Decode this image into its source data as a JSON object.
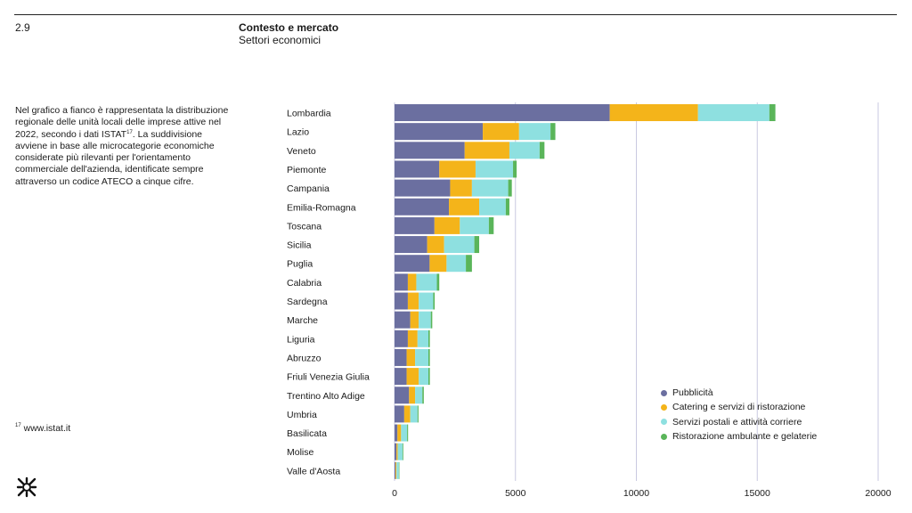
{
  "header": {
    "page_number": "2.9",
    "section_title": "Contesto e mercato",
    "section_subtitle": "Settori economici"
  },
  "description": {
    "text_before": "Nel grafico a fianco è rappresentata la distribuzione regionale delle unità locali delle imprese attive nel 2022, secondo i dati ISTAT",
    "footnote_ref": "17",
    "text_after": ". La suddivisione avviene in base alle microcategorie economiche considerate più rilevanti per l'orientamento commerciale dell'azienda, identificate sempre attraverso un codice ATECO a cinque cifre."
  },
  "footnote": {
    "ref": "17",
    "text": "www.istat.it"
  },
  "colors": {
    "pubblicita": "#6b6fa0",
    "catering": "#f4b41a",
    "postali": "#8ee0e0",
    "ambulante": "#5ab55a",
    "grid": "#c9c9e0"
  },
  "chart_data": {
    "type": "bar",
    "orientation": "horizontal",
    "stacked": true,
    "title": "",
    "xlabel": "",
    "ylabel": "",
    "xlim": [
      0,
      20000
    ],
    "x_ticks": [
      0,
      5000,
      10000,
      15000,
      20000
    ],
    "categories": [
      "Lombardia",
      "Lazio",
      "Veneto",
      "Piemonte",
      "Campania",
      "Emilia-Romagna",
      "Toscana",
      "Sicilia",
      "Puglia",
      "Calabria",
      "Sardegna",
      "Marche",
      "Liguria",
      "Abruzzo",
      "Friuli Venezia Giulia",
      "Trentino Alto Adige",
      "Umbria",
      "Basilicata",
      "Molise",
      "Valle d'Aosta"
    ],
    "series": [
      {
        "name": "Pubblicità",
        "color_key": "pubblicita",
        "values": [
          8900,
          3650,
          2900,
          1850,
          2300,
          2250,
          1650,
          1350,
          1450,
          550,
          550,
          650,
          550,
          500,
          500,
          600,
          400,
          120,
          80,
          40
        ]
      },
      {
        "name": "Catering e servizi di ristorazione",
        "color_key": "catering",
        "values": [
          3650,
          1500,
          1850,
          1500,
          900,
          1250,
          1050,
          700,
          700,
          350,
          450,
          350,
          400,
          350,
          500,
          250,
          250,
          150,
          50,
          40
        ]
      },
      {
        "name": "Servizi postali e attività corriere",
        "color_key": "postali",
        "values": [
          2950,
          1300,
          1250,
          1550,
          1500,
          1100,
          1200,
          1250,
          800,
          850,
          600,
          500,
          450,
          550,
          400,
          300,
          300,
          250,
          200,
          100
        ]
      },
      {
        "name": "Ristorazione ambulante e gelaterie",
        "color_key": "ambulante",
        "values": [
          250,
          200,
          200,
          150,
          150,
          150,
          200,
          200,
          250,
          100,
          60,
          60,
          60,
          60,
          60,
          60,
          40,
          40,
          30,
          20
        ]
      }
    ],
    "legend_position": "bottom-right"
  }
}
